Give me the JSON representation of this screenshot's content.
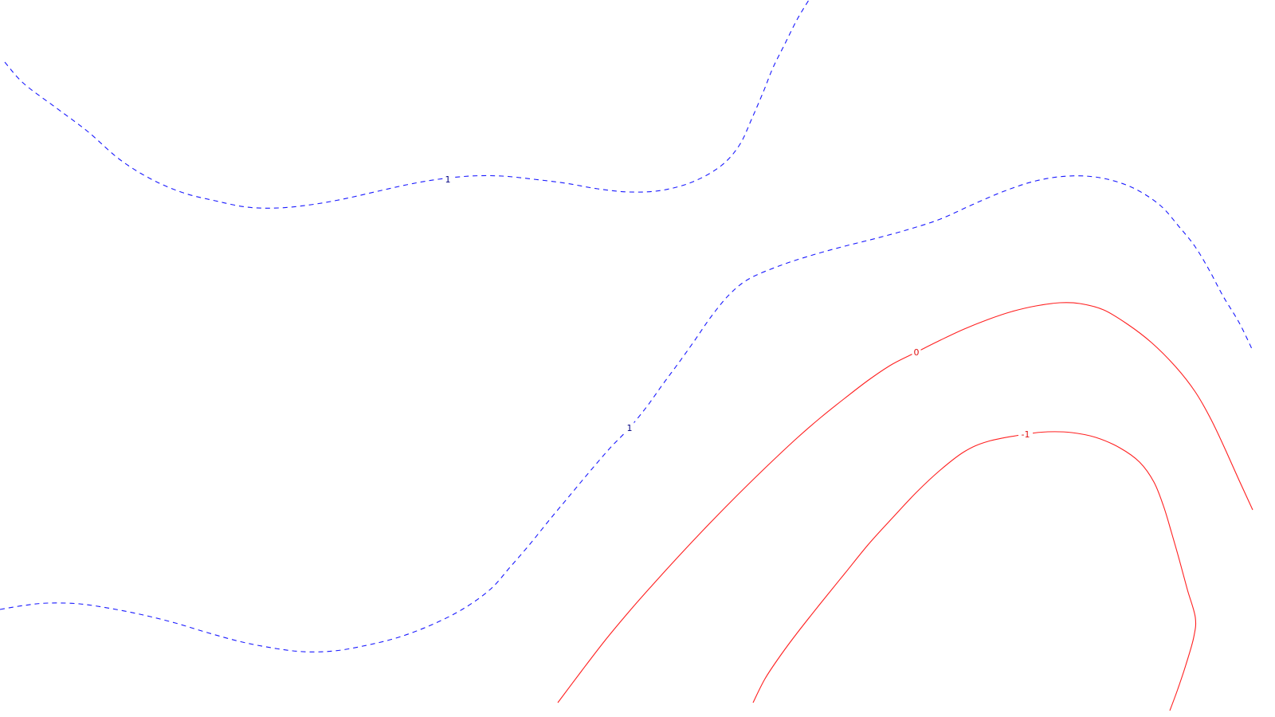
{
  "chart_data": {
    "type": "contour",
    "title": "",
    "xlabel": "",
    "ylabel": "",
    "grid": false,
    "colors": {
      "positive": "#1a1aff",
      "zero": "#ff2020",
      "negative": "#ff2020",
      "positive_label": "#000080",
      "negative_label": "#e01010"
    },
    "levels": [
      {
        "name": "contour-level-1-upper",
        "value": 1,
        "label": "1",
        "style": "dashed",
        "color": "#1a1aff",
        "label_color": "#000080",
        "label_at": [
          562,
          225
        ],
        "points": [
          [
            6,
            78
          ],
          [
            30,
            105
          ],
          [
            70,
            135
          ],
          [
            110,
            165
          ],
          [
            150,
            200
          ],
          [
            190,
            225
          ],
          [
            230,
            242
          ],
          [
            270,
            252
          ],
          [
            310,
            260
          ],
          [
            350,
            261
          ],
          [
            390,
            257
          ],
          [
            430,
            250
          ],
          [
            470,
            241
          ],
          [
            510,
            232
          ],
          [
            550,
            225
          ],
          [
            590,
            221
          ],
          [
            630,
            221
          ],
          [
            670,
            225
          ],
          [
            710,
            230
          ],
          [
            750,
            237
          ],
          [
            790,
            241
          ],
          [
            830,
            239
          ],
          [
            870,
            228
          ],
          [
            905,
            208
          ],
          [
            928,
            182
          ],
          [
            943,
            150
          ],
          [
            958,
            115
          ],
          [
            970,
            85
          ],
          [
            985,
            55
          ],
          [
            1000,
            25
          ],
          [
            1015,
            0
          ]
        ]
      },
      {
        "name": "contour-level-1-lower",
        "value": 1,
        "label": "1",
        "style": "dashed",
        "color": "#1a1aff",
        "label_color": "#000080",
        "label_at": [
          790,
          537
        ],
        "points": [
          [
            0,
            765
          ],
          [
            30,
            760
          ],
          [
            60,
            757
          ],
          [
            100,
            758
          ],
          [
            140,
            764
          ],
          [
            180,
            772
          ],
          [
            220,
            782
          ],
          [
            260,
            794
          ],
          [
            300,
            805
          ],
          [
            340,
            813
          ],
          [
            380,
            818
          ],
          [
            420,
            817
          ],
          [
            460,
            810
          ],
          [
            500,
            800
          ],
          [
            540,
            785
          ],
          [
            580,
            765
          ],
          [
            615,
            740
          ],
          [
            640,
            712
          ],
          [
            665,
            683
          ],
          [
            690,
            652
          ],
          [
            715,
            622
          ],
          [
            740,
            592
          ],
          [
            765,
            563
          ],
          [
            790,
            537
          ],
          [
            812,
            510
          ],
          [
            832,
            482
          ],
          [
            852,
            455
          ],
          [
            872,
            427
          ],
          [
            892,
            398
          ],
          [
            915,
            370
          ],
          [
            940,
            350
          ],
          [
            980,
            333
          ],
          [
            1020,
            320
          ],
          [
            1060,
            309
          ],
          [
            1100,
            299
          ],
          [
            1140,
            288
          ],
          [
            1180,
            275
          ],
          [
            1220,
            257
          ],
          [
            1260,
            240
          ],
          [
            1300,
            227
          ],
          [
            1340,
            221
          ],
          [
            1380,
            223
          ],
          [
            1420,
            235
          ],
          [
            1455,
            257
          ],
          [
            1480,
            285
          ],
          [
            1500,
            310
          ],
          [
            1518,
            340
          ],
          [
            1535,
            372
          ],
          [
            1555,
            405
          ],
          [
            1572,
            440
          ]
        ]
      },
      {
        "name": "contour-level-0",
        "value": 0,
        "label": "0",
        "style": "solid",
        "color": "#ff2020",
        "label_color": "#e01010",
        "label_at": [
          1150,
          442
        ],
        "points": [
          [
            700,
            882
          ],
          [
            730,
            842
          ],
          [
            760,
            803
          ],
          [
            790,
            767
          ],
          [
            820,
            733
          ],
          [
            850,
            700
          ],
          [
            880,
            668
          ],
          [
            910,
            637
          ],
          [
            940,
            607
          ],
          [
            970,
            578
          ],
          [
            1000,
            550
          ],
          [
            1030,
            524
          ],
          [
            1060,
            500
          ],
          [
            1090,
            477
          ],
          [
            1120,
            457
          ],
          [
            1150,
            442
          ],
          [
            1180,
            427
          ],
          [
            1210,
            413
          ],
          [
            1240,
            401
          ],
          [
            1270,
            391
          ],
          [
            1300,
            384
          ],
          [
            1330,
            380
          ],
          [
            1355,
            381
          ],
          [
            1385,
            389
          ],
          [
            1415,
            407
          ],
          [
            1445,
            430
          ],
          [
            1475,
            460
          ],
          [
            1500,
            492
          ],
          [
            1520,
            527
          ],
          [
            1538,
            565
          ],
          [
            1555,
            603
          ],
          [
            1572,
            640
          ]
        ]
      },
      {
        "name": "contour-level-minus1",
        "value": -1,
        "label": "-1",
        "style": "solid",
        "color": "#ff2020",
        "label_color": "#e01010",
        "label_at": [
          1287,
          545
        ],
        "points": [
          [
            945,
            882
          ],
          [
            960,
            852
          ],
          [
            980,
            822
          ],
          [
            1000,
            795
          ],
          [
            1030,
            757
          ],
          [
            1060,
            720
          ],
          [
            1090,
            683
          ],
          [
            1120,
            650
          ],
          [
            1150,
            618
          ],
          [
            1180,
            590
          ],
          [
            1210,
            567
          ],
          [
            1240,
            554
          ],
          [
            1287,
            545
          ],
          [
            1315,
            542
          ],
          [
            1345,
            543
          ],
          [
            1375,
            549
          ],
          [
            1405,
            562
          ],
          [
            1430,
            580
          ],
          [
            1448,
            605
          ],
          [
            1460,
            635
          ],
          [
            1470,
            668
          ],
          [
            1480,
            703
          ],
          [
            1490,
            740
          ],
          [
            1500,
            775
          ],
          [
            1498,
            800
          ],
          [
            1488,
            835
          ],
          [
            1478,
            865
          ],
          [
            1468,
            892
          ]
        ]
      }
    ]
  }
}
